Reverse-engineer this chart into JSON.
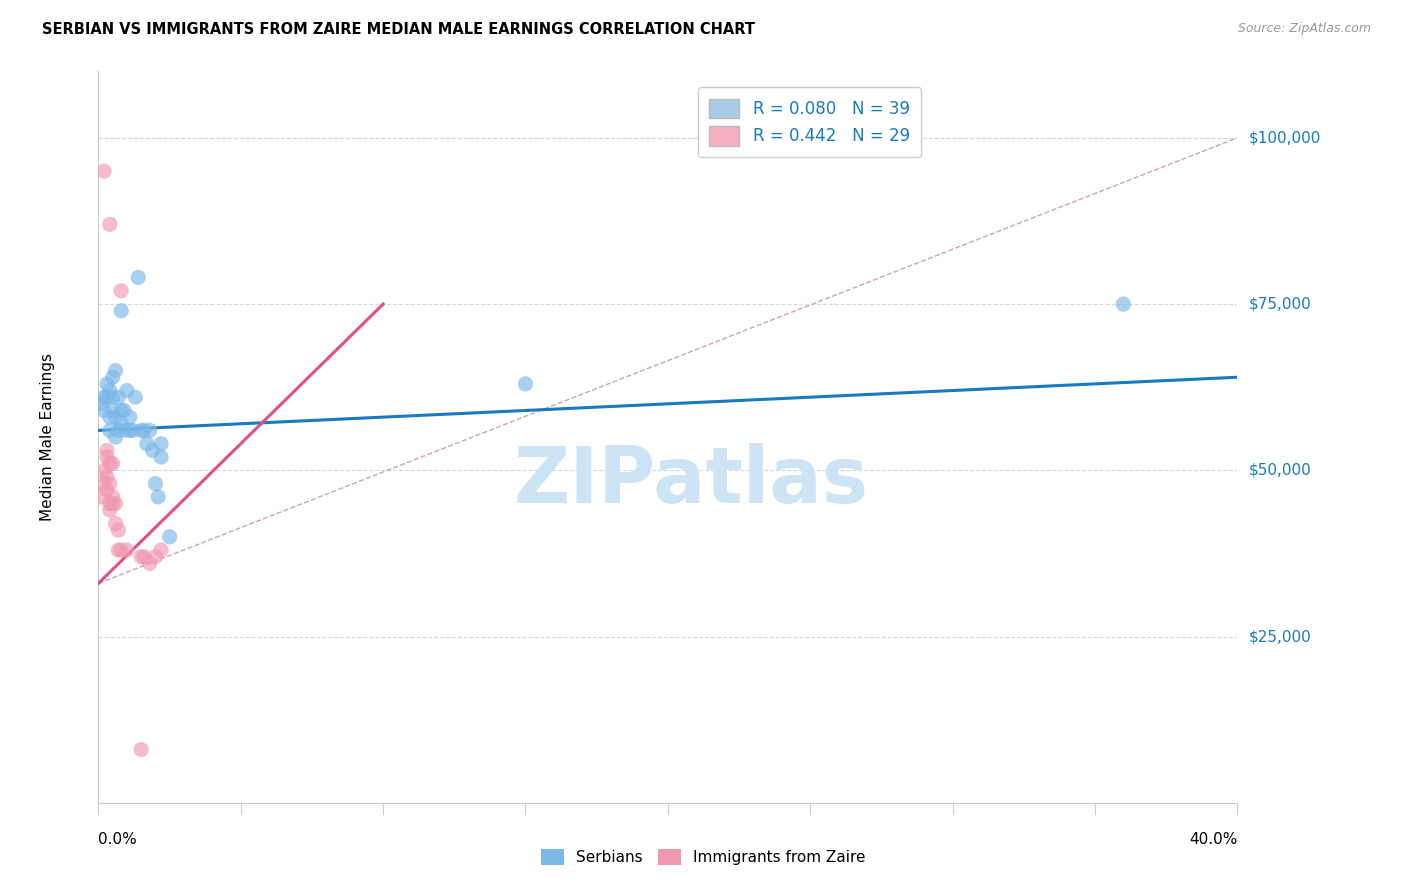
{
  "title": "SERBIAN VS IMMIGRANTS FROM ZAIRE MEDIAN MALE EARNINGS CORRELATION CHART",
  "source": "Source: ZipAtlas.com",
  "ylabel": "Median Male Earnings",
  "y_ticks": [
    0,
    25000,
    50000,
    75000,
    100000
  ],
  "y_tick_labels": [
    "",
    "$25,000",
    "$50,000",
    "$75,000",
    "$100,000"
  ],
  "x_min": 0.0,
  "x_max": 0.4,
  "y_min": 0,
  "y_max": 110000,
  "serbian_points": [
    [
      0.001,
      60000
    ],
    [
      0.002,
      61000
    ],
    [
      0.002,
      59000
    ],
    [
      0.003,
      63000
    ],
    [
      0.003,
      61000
    ],
    [
      0.004,
      62000
    ],
    [
      0.004,
      58000
    ],
    [
      0.004,
      56000
    ],
    [
      0.005,
      64000
    ],
    [
      0.005,
      61000
    ],
    [
      0.005,
      59000
    ],
    [
      0.006,
      65000
    ],
    [
      0.006,
      58000
    ],
    [
      0.006,
      55000
    ],
    [
      0.007,
      61000
    ],
    [
      0.007,
      56000
    ],
    [
      0.008,
      74000
    ],
    [
      0.008,
      59000
    ],
    [
      0.008,
      57000
    ],
    [
      0.009,
      59000
    ],
    [
      0.009,
      56000
    ],
    [
      0.01,
      62000
    ],
    [
      0.011,
      58000
    ],
    [
      0.011,
      56000
    ],
    [
      0.012,
      56000
    ],
    [
      0.013,
      61000
    ],
    [
      0.014,
      79000
    ],
    [
      0.015,
      56000
    ],
    [
      0.016,
      56000
    ],
    [
      0.017,
      54000
    ],
    [
      0.018,
      56000
    ],
    [
      0.019,
      53000
    ],
    [
      0.02,
      48000
    ],
    [
      0.021,
      46000
    ],
    [
      0.022,
      54000
    ],
    [
      0.022,
      52000
    ],
    [
      0.025,
      40000
    ],
    [
      0.15,
      63000
    ],
    [
      0.36,
      75000
    ]
  ],
  "zaire_points": [
    [
      0.002,
      95000
    ],
    [
      0.004,
      87000
    ],
    [
      0.008,
      77000
    ],
    [
      0.001,
      46000
    ],
    [
      0.002,
      50000
    ],
    [
      0.002,
      48000
    ],
    [
      0.003,
      53000
    ],
    [
      0.003,
      52000
    ],
    [
      0.003,
      49000
    ],
    [
      0.003,
      47000
    ],
    [
      0.004,
      51000
    ],
    [
      0.004,
      48000
    ],
    [
      0.004,
      45000
    ],
    [
      0.004,
      44000
    ],
    [
      0.005,
      51000
    ],
    [
      0.005,
      46000
    ],
    [
      0.005,
      45000
    ],
    [
      0.006,
      45000
    ],
    [
      0.006,
      42000
    ],
    [
      0.007,
      41000
    ],
    [
      0.007,
      38000
    ],
    [
      0.008,
      38000
    ],
    [
      0.01,
      38000
    ],
    [
      0.015,
      37000
    ],
    [
      0.016,
      37000
    ],
    [
      0.018,
      36000
    ],
    [
      0.015,
      8000
    ],
    [
      0.02,
      37000
    ],
    [
      0.022,
      38000
    ]
  ],
  "serbian_trend_x": [
    0.0,
    0.4
  ],
  "serbian_trend_y": [
    56000,
    64000
  ],
  "serbian_trend_color": "#1a7abf",
  "zaire_trend_x": [
    0.0,
    0.1
  ],
  "zaire_trend_y": [
    33000,
    75000
  ],
  "zaire_trend_color": "#e05080",
  "ref_line_x": [
    0.0,
    0.4
  ],
  "ref_line_y": [
    33000,
    100000
  ],
  "ref_line_color": "#d4a0b0",
  "scatter_serbian_color": "#7ab8e8",
  "scatter_zaire_color": "#f098b0",
  "background_color": "#ffffff",
  "watermark": "ZIPatlas",
  "watermark_color": "#cde4f5",
  "legend_serbian_color": "#a8cce8",
  "legend_zaire_color": "#f4b0c0",
  "legend_text_color": "#1a7abf",
  "right_label_color": "#1a7abf",
  "grid_color": "#d8d8d8",
  "spine_color": "#cccccc"
}
